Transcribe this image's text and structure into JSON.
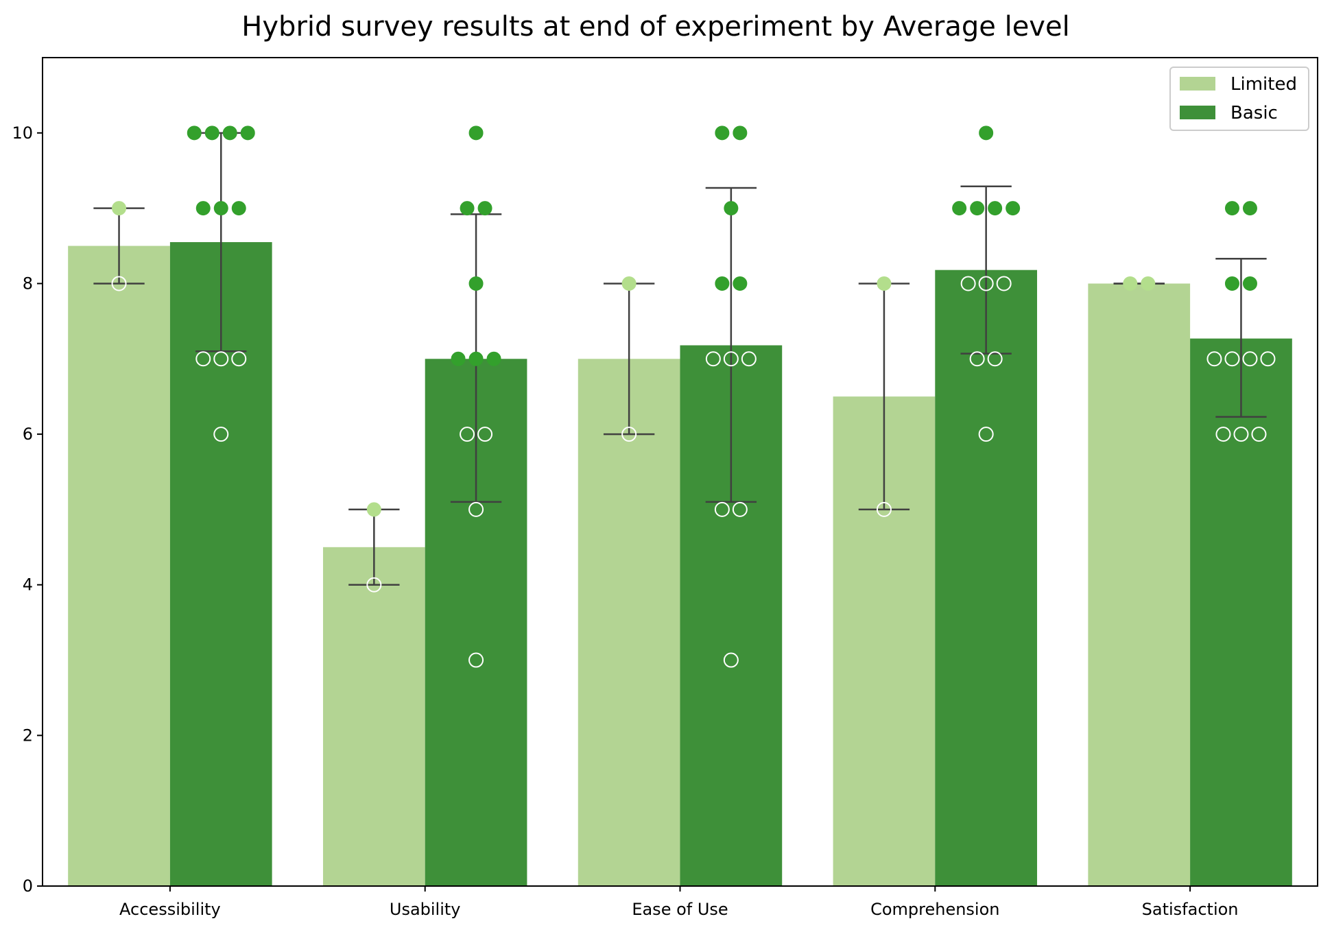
{
  "chart_data": {
    "type": "bar",
    "title": "Hybrid survey results at end of experiment by Average level",
    "xlabel": "",
    "ylabel": "",
    "ylim": [
      0,
      11
    ],
    "yticks": [
      0,
      2,
      4,
      6,
      8,
      10
    ],
    "grid": false,
    "legend_position": "top-right",
    "categories": [
      "Accessibility",
      "Usability",
      "Ease of Use",
      "Comprehension",
      "Satisfaction"
    ],
    "series": [
      {
        "name": "Limited",
        "color": "#b3d493",
        "point_color": "#b3de8c",
        "values": [
          8.5,
          4.5,
          7.0,
          6.5,
          8.0
        ],
        "error_low": [
          8.0,
          4.0,
          6.0,
          5.0,
          8.0
        ],
        "error_high": [
          9.0,
          5.0,
          8.0,
          8.0,
          8.0
        ],
        "points": [
          [
            9,
            8
          ],
          [
            5,
            4
          ],
          [
            8,
            6
          ],
          [
            8,
            5
          ],
          [
            8,
            8
          ]
        ]
      },
      {
        "name": "Basic",
        "color": "#3e9039",
        "point_color": "#33a02c",
        "values": [
          8.55,
          7.0,
          7.18,
          8.18,
          7.27
        ],
        "error_low": [
          7.1,
          5.1,
          5.1,
          7.07,
          6.23
        ],
        "error_high": [
          10.0,
          8.92,
          9.27,
          9.29,
          8.33
        ],
        "points": [
          [
            10,
            10,
            10,
            10,
            9,
            9,
            9,
            7,
            7,
            7,
            6
          ],
          [
            10,
            9,
            9,
            8,
            7,
            7,
            7,
            6,
            6,
            5,
            3
          ],
          [
            10,
            10,
            9,
            8,
            8,
            7,
            7,
            7,
            5,
            5,
            3
          ],
          [
            10,
            9,
            9,
            9,
            9,
            8,
            8,
            8,
            7,
            7,
            6
          ],
          [
            9,
            9,
            8,
            8,
            7,
            7,
            7,
            7,
            6,
            6,
            6
          ]
        ]
      }
    ]
  }
}
